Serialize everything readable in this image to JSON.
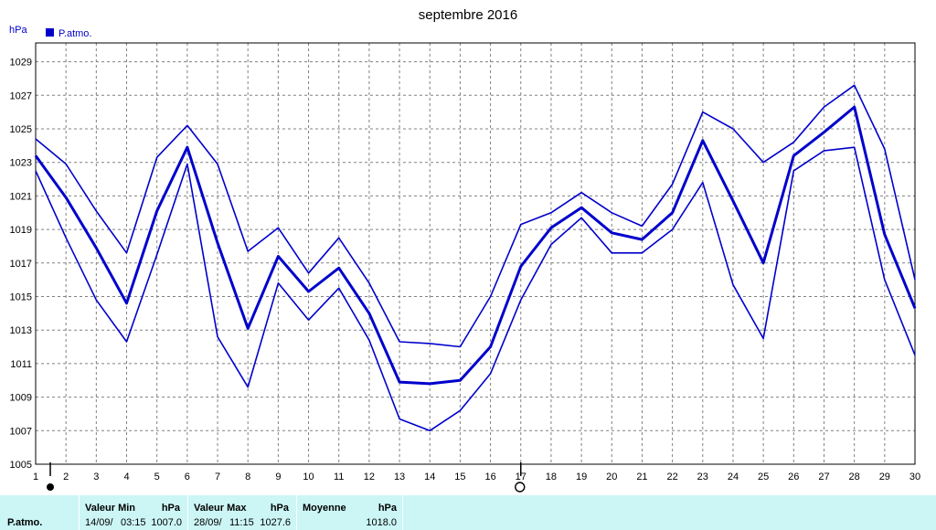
{
  "chart_data": {
    "type": "line",
    "title": "septembre 2016",
    "ylabel": "hPa",
    "legend": {
      "label": "P.atmo.",
      "placement": "top-left",
      "color": "#0000cc"
    },
    "grid": true,
    "ylim": [
      1005,
      1030
    ],
    "yticks": [
      "1005",
      "1007",
      "1009",
      "1011",
      "1013",
      "1015",
      "1017",
      "1019",
      "1021",
      "1023",
      "1025",
      "1027",
      "1029"
    ],
    "x": [
      1,
      2,
      3,
      4,
      5,
      6,
      7,
      8,
      9,
      10,
      11,
      12,
      13,
      14,
      15,
      16,
      17,
      18,
      19,
      20,
      21,
      22,
      23,
      24,
      25,
      26,
      27,
      28,
      29,
      30
    ],
    "series": [
      {
        "role": "max",
        "color": "#0000cc",
        "values": [
          1024.4,
          1022.9,
          1020.1,
          1017.6,
          1023.3,
          1025.2,
          1022.9,
          1017.7,
          1019.1,
          1016.4,
          1018.5,
          1015.8,
          1012.3,
          1012.2,
          1012.0,
          1015.0,
          1019.3,
          1020.0,
          1021.2,
          1020.0,
          1019.2,
          1021.7,
          1026.0,
          1025.0,
          1023.0,
          1024.2,
          1026.3,
          1027.6,
          1023.8,
          1016.0
        ]
      },
      {
        "role": "mean",
        "color": "#0000cc",
        "values": [
          1023.4,
          1020.9,
          1017.9,
          1014.6,
          1020.1,
          1023.9,
          1018.2,
          1013.1,
          1017.4,
          1015.3,
          1016.7,
          1014.0,
          1009.9,
          1009.8,
          1010.0,
          1012.0,
          1016.8,
          1019.1,
          1020.3,
          1018.8,
          1018.4,
          1020.0,
          1024.3,
          1020.7,
          1017.0,
          1023.4,
          1024.8,
          1026.3,
          1018.7,
          1014.3
        ]
      },
      {
        "role": "min",
        "color": "#0000cc",
        "values": [
          1022.5,
          1018.5,
          1014.8,
          1012.3,
          1017.5,
          1022.9,
          1012.6,
          1009.6,
          1015.8,
          1013.6,
          1015.5,
          1012.4,
          1007.7,
          1007.0,
          1008.2,
          1010.4,
          1014.8,
          1018.1,
          1019.7,
          1017.6,
          1017.6,
          1019.0,
          1021.8,
          1015.7,
          1012.5,
          1022.5,
          1023.7,
          1023.9,
          1016.0,
          1011.5
        ]
      }
    ],
    "markers": {
      "full_moon_day": "1",
      "new_moon_day": "17"
    }
  },
  "stats": {
    "row_label": "P.atmo.",
    "min": {
      "header": "Valeur Min",
      "unit": "hPa",
      "date": "14/09/",
      "time": "03:15",
      "value": "1007.0"
    },
    "max": {
      "header": "Valeur Max",
      "unit": "hPa",
      "date": "28/09/",
      "time": "11:15",
      "value": "1027.6"
    },
    "mean": {
      "header": "Moyenne",
      "unit": "hPa",
      "value": "1018.0"
    }
  }
}
